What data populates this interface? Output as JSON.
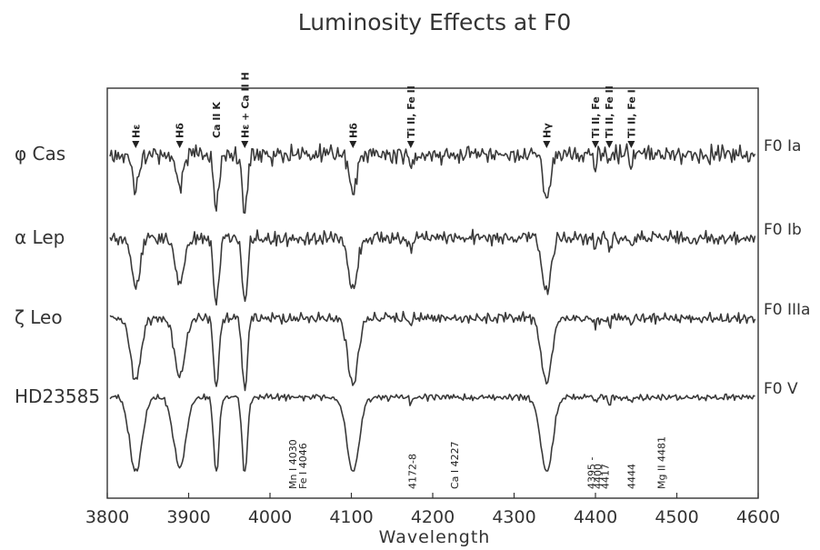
{
  "chart_data": {
    "type": "line",
    "title": "Luminosity Effects at F0",
    "xlabel": "Wavelength",
    "ylabel": "",
    "xlim": [
      3800,
      4600
    ],
    "x_ticks": [
      3800,
      3900,
      4000,
      4100,
      4200,
      4300,
      4400,
      4500,
      4600
    ],
    "grid": false,
    "series": [
      {
        "name": "φ Cas",
        "class": "F0 Ia"
      },
      {
        "name": "α Lep",
        "class": "F0 Ib"
      },
      {
        "name": "ζ Leo",
        "class": "F0 IIIa"
      },
      {
        "name": "HD23585",
        "class": "F0 V"
      }
    ],
    "absorption_lines": [
      {
        "wavelength": 3835,
        "depth": [
          0.55,
          0.75,
          0.9,
          1.0
        ]
      },
      {
        "wavelength": 3889,
        "depth": [
          0.55,
          0.72,
          0.85,
          0.95
        ]
      },
      {
        "wavelength": 3934,
        "depth": [
          0.9,
          1.0,
          1.0,
          1.05
        ]
      },
      {
        "wavelength": 3969,
        "depth": [
          0.95,
          1.0,
          1.05,
          1.05
        ]
      },
      {
        "wavelength": 4102,
        "depth": [
          0.65,
          0.8,
          0.95,
          1.0
        ]
      },
      {
        "wavelength": 4173,
        "depth": [
          0.5,
          0.3,
          0.2,
          0.15
        ]
      },
      {
        "wavelength": 4340,
        "depth": [
          0.7,
          0.85,
          0.95,
          1.0
        ]
      },
      {
        "wavelength": 4400,
        "depth": [
          0.45,
          0.3,
          0.2,
          0.15
        ]
      },
      {
        "wavelength": 4417,
        "depth": [
          0.45,
          0.3,
          0.2,
          0.15
        ]
      },
      {
        "wavelength": 4444,
        "depth": [
          0.4,
          0.25,
          0.2,
          0.15
        ]
      }
    ],
    "top_annotations": [
      {
        "text": "Hε",
        "wavelength": 3835,
        "arrow": true
      },
      {
        "text": "Hδ",
        "wavelength": 3889,
        "arrow": true
      },
      {
        "text": "Ca II K",
        "wavelength": 3934,
        "arrow": false
      },
      {
        "text": "Hε + Ca II H",
        "wavelength": 3969,
        "arrow": true
      },
      {
        "text": "Hδ",
        "wavelength": 4102,
        "arrow": true
      },
      {
        "text": "Ti II, Fe II",
        "wavelength": 4173,
        "arrow": true
      },
      {
        "text": "Hγ",
        "wavelength": 4340,
        "arrow": true
      },
      {
        "text": "Ti II, Fe",
        "wavelength": 4400,
        "arrow": true
      },
      {
        "text": "Ti II, Fe II",
        "wavelength": 4417,
        "arrow": true
      },
      {
        "text": "Ti II, Fe I",
        "wavelength": 4444,
        "arrow": true
      }
    ],
    "bottom_annotations": [
      {
        "text": "Mn I 4030",
        "wavelength": 4028
      },
      {
        "text": "Fe I 4046",
        "wavelength": 4040
      },
      {
        "text": "4172-8",
        "wavelength": 4175
      },
      {
        "text": "Ca I 4227",
        "wavelength": 4227
      },
      {
        "text": "4395 -",
        "wavelength": 4395
      },
      {
        "text": "4400",
        "wavelength": 4403
      },
      {
        "text": "4417",
        "wavelength": 4412
      },
      {
        "text": "4444",
        "wavelength": 4444
      },
      {
        "text": "Mg II 4481",
        "wavelength": 4481
      }
    ]
  }
}
